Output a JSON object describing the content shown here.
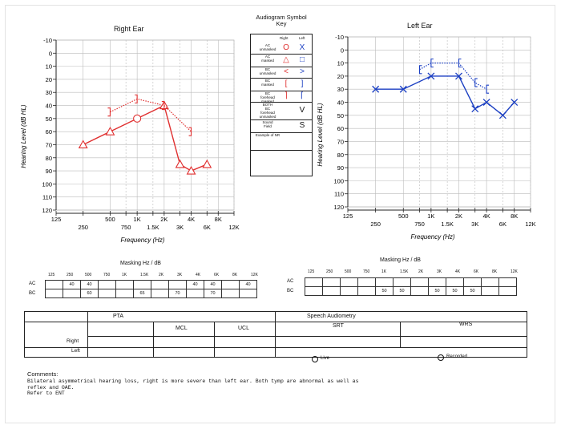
{
  "header": {
    "right_ear_title": "Right Ear",
    "left_ear_title": "Left Ear",
    "key_title": "Audiogram Symbol\nKey"
  },
  "axis": {
    "y_label": "Hearing Level (dB HL)",
    "x_label": "Frequency (Hz)",
    "y_ticks": [
      "-10",
      "0",
      "10",
      "20",
      "30",
      "40",
      "50",
      "60",
      "70",
      "80",
      "90",
      "100",
      "110",
      "120"
    ],
    "x_ticks_top": [
      "125",
      "500",
      "1K",
      "2K",
      "4K",
      "8K"
    ],
    "x_ticks_bottom": [
      "250",
      "750",
      "1.5K",
      "3K",
      "6K",
      "12K"
    ]
  },
  "key": {
    "col_right": "Right",
    "col_left": "Left",
    "rows": [
      {
        "label": "AC\nunmasked",
        "right": "O",
        "left": "X"
      },
      {
        "label": "AC\nmasked",
        "right": "△",
        "left": "□"
      },
      {
        "label": "BC\nunmasked",
        "right": "<",
        "left": ">"
      },
      {
        "label": "BC\nmasked",
        "right": "[",
        "left": "]"
      },
      {
        "label": "BC\nforehead\nmasked",
        "right": "⌉",
        "left": "⌈"
      },
      {
        "label": "BOTH\nBC\nforehead\nunmasked",
        "right": "",
        "left": "V"
      },
      {
        "label": "Sound\nField",
        "right": "",
        "left": "S"
      },
      {
        "label": "Example of NR",
        "right": "",
        "left": ""
      }
    ]
  },
  "chart_data": [
    {
      "type": "line",
      "title": "Right Ear",
      "xlabel": "Frequency (Hz)",
      "ylabel": "Hearing Level (dB HL)",
      "ylim": [
        120,
        -10
      ],
      "x_scale": "log",
      "series": [
        {
          "name": "AC masked",
          "color": "#e03030",
          "symbol": "triangle",
          "points": [
            [
              250,
              70
            ],
            [
              500,
              60
            ],
            [
              2000,
              40
            ],
            [
              3000,
              85
            ],
            [
              4000,
              90
            ],
            [
              6000,
              85
            ]
          ]
        },
        {
          "name": "AC unmasked",
          "color": "#e03030",
          "symbol": "circle",
          "points": [
            [
              1000,
              50
            ]
          ]
        },
        {
          "name": "BC masked",
          "color": "#e03030",
          "symbol": "bracket",
          "dashed": true,
          "points": [
            [
              500,
              45
            ],
            [
              1000,
              35
            ],
            [
              2000,
              40
            ],
            [
              4000,
              60
            ]
          ]
        }
      ]
    },
    {
      "type": "line",
      "title": "Left Ear",
      "xlabel": "Frequency (Hz)",
      "ylabel": "Hearing Level (dB HL)",
      "ylim": [
        120,
        -10
      ],
      "x_scale": "log",
      "series": [
        {
          "name": "AC unmasked",
          "color": "#1b3fc2",
          "symbol": "x",
          "points": [
            [
              250,
              30
            ],
            [
              500,
              30
            ],
            [
              1000,
              20
            ],
            [
              2000,
              20
            ],
            [
              3000,
              45
            ],
            [
              4000,
              40
            ],
            [
              6000,
              50
            ],
            [
              8000,
              40
            ]
          ]
        },
        {
          "name": "BC masked",
          "color": "#1b3fc2",
          "symbol": "bracket",
          "dashed": true,
          "points": [
            [
              750,
              15
            ],
            [
              1000,
              10
            ],
            [
              2000,
              10
            ],
            [
              3000,
              25
            ],
            [
              4000,
              30
            ]
          ]
        }
      ]
    }
  ],
  "masking": {
    "title": "Masking Hz / dB",
    "freqs": [
      "125",
      "250",
      "500",
      "750",
      "1K",
      "1.5K",
      "2K",
      "3K",
      "4K",
      "6K",
      "8K",
      "12K"
    ],
    "right": {
      "ac": [
        "",
        "40",
        "40",
        "",
        "",
        "",
        "",
        "",
        "40",
        "40",
        "",
        "40"
      ],
      "bc": [
        "",
        "",
        "60",
        "",
        "",
        "65",
        "",
        "70",
        "",
        "70",
        "",
        ""
      ]
    },
    "left": {
      "ac": [
        "",
        "",
        "",
        "",
        "",
        "",
        "",
        "",
        "",
        "",
        "",
        ""
      ],
      "bc": [
        "",
        "",
        "",
        "",
        "50",
        "50",
        "",
        "50",
        "50",
        "50",
        "",
        ""
      ]
    },
    "row_ac": "AC",
    "row_bc": "BC"
  },
  "bottom": {
    "pta": "PTA",
    "mcl": "MCL",
    "ucl": "UCL",
    "speech": "Speech Audiometry",
    "srt": "SRT",
    "wrs": "WRS",
    "right": "Right",
    "left": "Left",
    "live": "Live",
    "recorded": "Recorded"
  },
  "comments": {
    "label": "Comments:",
    "text": "Bilateral asymmetrical hearing loss, right is more severe than left ear. Both tymp are abnormal as well as\nreflex and OAE.\nRefer to ENT"
  }
}
